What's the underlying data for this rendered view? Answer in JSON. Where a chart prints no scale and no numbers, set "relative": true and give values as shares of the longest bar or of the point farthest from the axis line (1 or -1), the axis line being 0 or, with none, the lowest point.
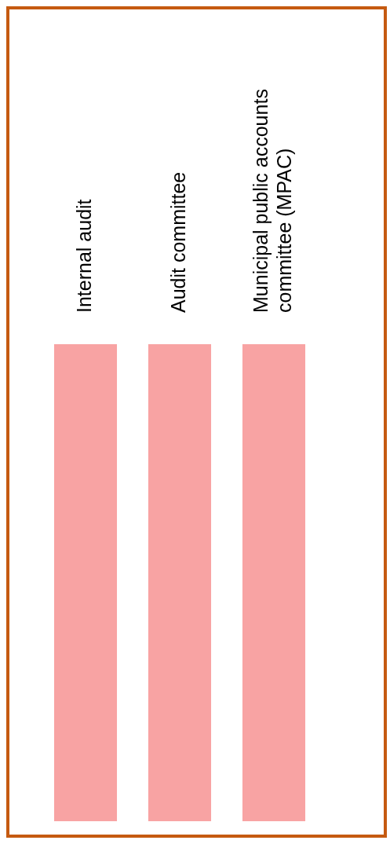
{
  "chart_data": {
    "type": "bar",
    "relative": true,
    "categories": [
      "Internal audit",
      "Audit committee",
      "Municipal public accounts committee (MPAC)"
    ],
    "values": [
      1,
      1,
      1
    ],
    "color": "#f8a3a3"
  }
}
